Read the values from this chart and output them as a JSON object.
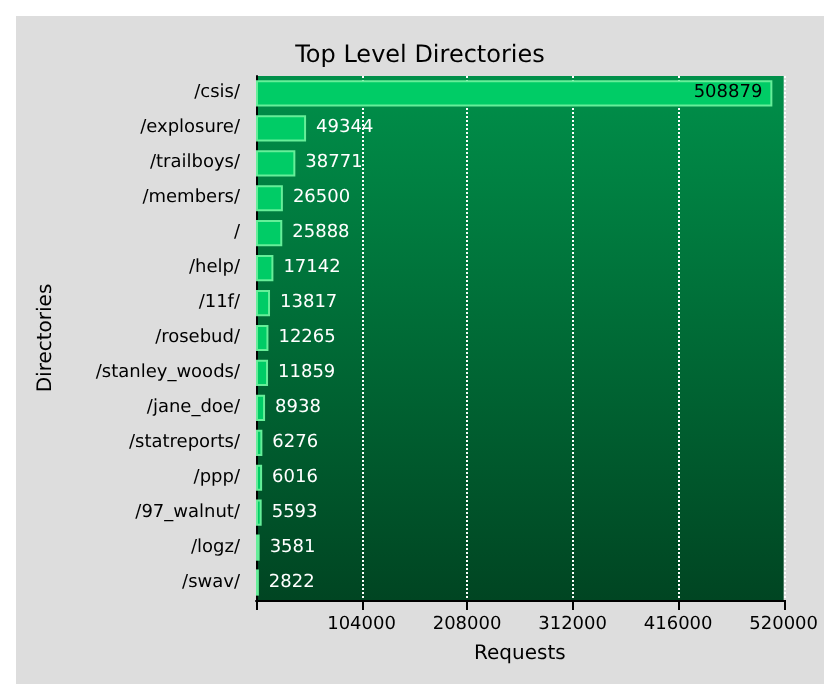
{
  "chart_data": {
    "type": "bar",
    "orientation": "horizontal",
    "title": "Top Level Directories",
    "xlabel": "Requests",
    "ylabel": "Directories",
    "categories": [
      "/csis/",
      "/explosure/",
      "/trailboys/",
      "/members/",
      "/",
      "/help/",
      "/11f/",
      "/rosebud/",
      "/stanley_woods/",
      "/jane_doe/",
      "/statreports/",
      "/ppp/",
      "/97_walnut/",
      "/logz/",
      "/swav/"
    ],
    "values": [
      508879,
      49344,
      38771,
      26500,
      25888,
      17142,
      13817,
      12265,
      11859,
      8938,
      6276,
      6016,
      5593,
      3581,
      2822
    ],
    "color": "#00cc66",
    "data_labels": true,
    "grid": "x",
    "xlim": [
      0,
      520000
    ],
    "xticks": [
      {
        "value": 0,
        "label": null
      },
      104000,
      208000,
      312000,
      416000,
      520000
    ]
  }
}
